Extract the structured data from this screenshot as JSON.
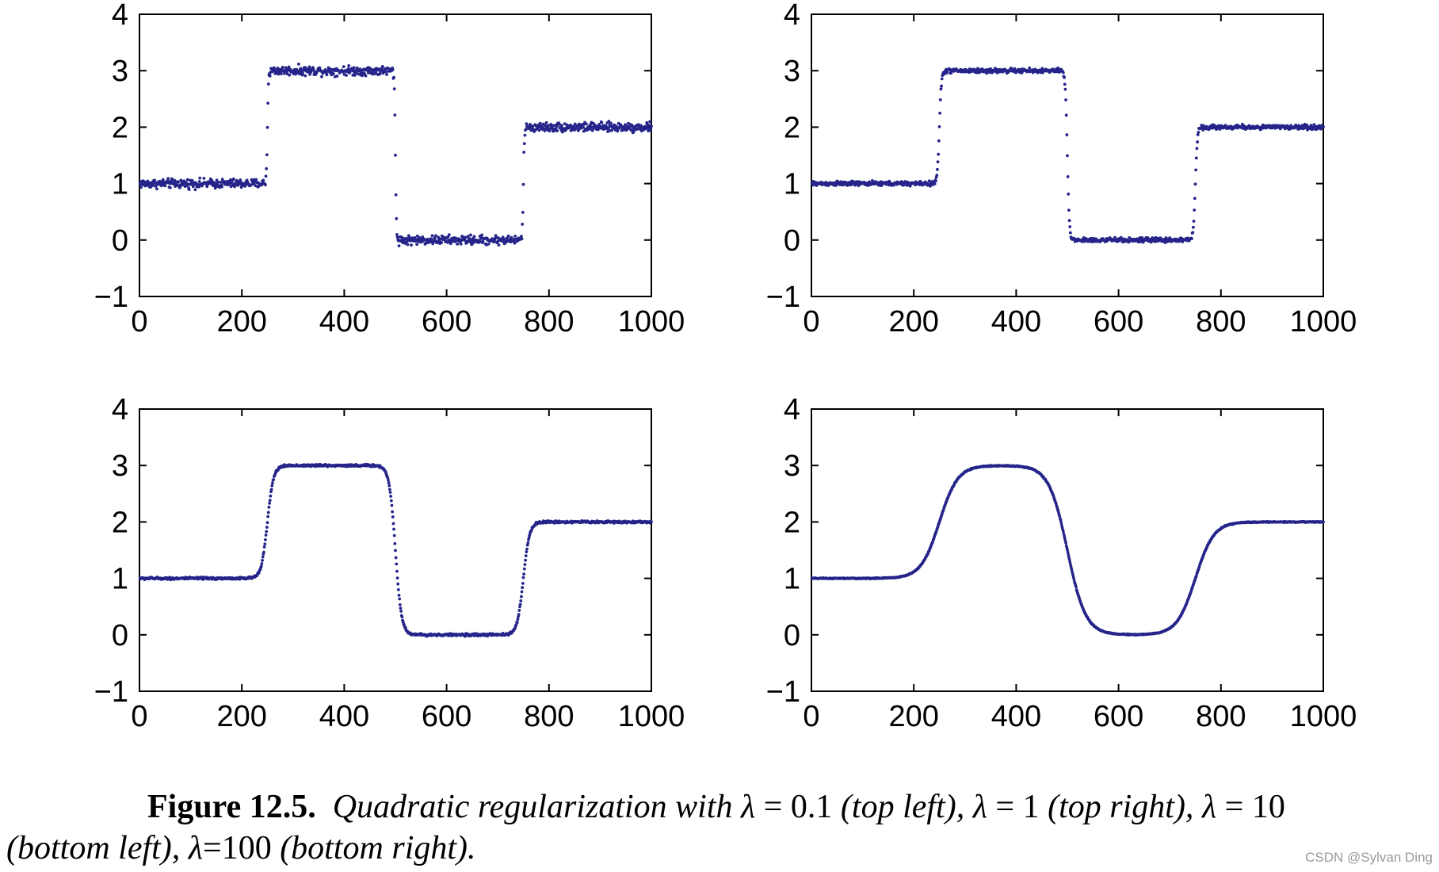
{
  "figure": {
    "label": "Figure 12.5.",
    "caption_line1": {
      "pre": "Quadratic regularization with",
      "lambda_sym": "λ",
      "eq": "=",
      "v1": "0.1",
      "c1": "(top left),",
      "v2": "1",
      "c2": "(top right),",
      "v3": "10"
    },
    "caption_line2": {
      "c3": "(bottom left),",
      "lambda_sym": "λ",
      "eq": "=",
      "v4": "100",
      "c4": "(bottom right)."
    },
    "watermark": "CSDN @Sylvan Ding"
  },
  "colors": {
    "points": "#24248a",
    "axis": "#000000"
  },
  "chart_data": [
    {
      "type": "scatter",
      "position": "top-left",
      "lambda": 0.1,
      "xlim": [
        0,
        1000
      ],
      "ylim": [
        -1,
        4
      ],
      "xticks": [
        0,
        200,
        400,
        600,
        800,
        1000
      ],
      "xtick_labels": [
        "0",
        "200",
        "400",
        "600",
        "800",
        "1000"
      ],
      "yticks": [
        -1,
        0,
        1,
        2,
        3,
        4
      ],
      "ytick_labels": [
        "−1",
        "0",
        "1",
        "2",
        "3",
        "4"
      ],
      "n_points": 1000,
      "segments": [
        {
          "x_start": 0,
          "x_end": 250,
          "value": 1
        },
        {
          "x_start": 250,
          "x_end": 500,
          "value": 3
        },
        {
          "x_start": 500,
          "x_end": 750,
          "value": 0
        },
        {
          "x_start": 750,
          "x_end": 1000,
          "value": 2
        }
      ],
      "noise_amplitude": 0.04,
      "transition_width": 1
    },
    {
      "type": "scatter",
      "position": "top-right",
      "lambda": 1,
      "xlim": [
        0,
        1000
      ],
      "ylim": [
        -1,
        4
      ],
      "xticks": [
        0,
        200,
        400,
        600,
        800,
        1000
      ],
      "xtick_labels": [
        "0",
        "200",
        "400",
        "600",
        "800",
        "1000"
      ],
      "yticks": [
        -1,
        0,
        1,
        2,
        3,
        4
      ],
      "ytick_labels": [
        "−1",
        "0",
        "1",
        "2",
        "3",
        "4"
      ],
      "n_points": 1000,
      "segments": [
        {
          "x_start": 0,
          "x_end": 250,
          "value": 1
        },
        {
          "x_start": 250,
          "x_end": 500,
          "value": 3
        },
        {
          "x_start": 500,
          "x_end": 750,
          "value": 0
        },
        {
          "x_start": 750,
          "x_end": 1000,
          "value": 2
        }
      ],
      "noise_amplitude": 0.02,
      "transition_width": 2
    },
    {
      "type": "scatter",
      "position": "bottom-left",
      "lambda": 10,
      "xlim": [
        0,
        1000
      ],
      "ylim": [
        -1,
        4
      ],
      "xticks": [
        0,
        200,
        400,
        600,
        800,
        1000
      ],
      "xtick_labels": [
        "0",
        "200",
        "400",
        "600",
        "800",
        "1000"
      ],
      "yticks": [
        -1,
        0,
        1,
        2,
        3,
        4
      ],
      "ytick_labels": [
        "−1",
        "0",
        "1",
        "2",
        "3",
        "4"
      ],
      "n_points": 1000,
      "segments": [
        {
          "x_start": 0,
          "x_end": 250,
          "value": 1
        },
        {
          "x_start": 250,
          "x_end": 500,
          "value": 3
        },
        {
          "x_start": 500,
          "x_end": 750,
          "value": 0
        },
        {
          "x_start": 750,
          "x_end": 1000,
          "value": 2
        }
      ],
      "noise_amplitude": 0.01,
      "transition_width": 6
    },
    {
      "type": "scatter",
      "position": "bottom-right",
      "lambda": 100,
      "xlim": [
        0,
        1000
      ],
      "ylim": [
        -1,
        4
      ],
      "xticks": [
        0,
        200,
        400,
        600,
        800,
        1000
      ],
      "xtick_labels": [
        "0",
        "200",
        "400",
        "600",
        "800",
        "1000"
      ],
      "yticks": [
        -1,
        0,
        1,
        2,
        3,
        4
      ],
      "ytick_labels": [
        "−1",
        "0",
        "1",
        "2",
        "3",
        "4"
      ],
      "n_points": 1000,
      "segments": [
        {
          "x_start": 0,
          "x_end": 250,
          "value": 1
        },
        {
          "x_start": 250,
          "x_end": 500,
          "value": 3
        },
        {
          "x_start": 500,
          "x_end": 750,
          "value": 0
        },
        {
          "x_start": 750,
          "x_end": 1000,
          "value": 2
        }
      ],
      "noise_amplitude": 0.004,
      "transition_width": 18
    }
  ]
}
